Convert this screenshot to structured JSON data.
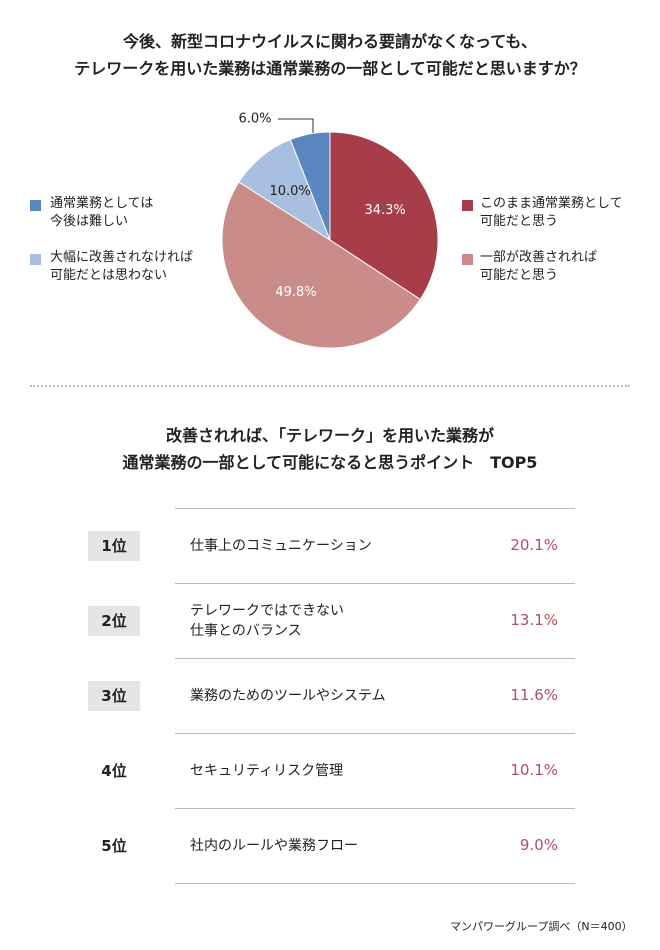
{
  "chart_data": {
    "type": "pie",
    "title": "今後、新型コロナウイルスに関わる要請がなくなっても、\nテレワークを用いた業務は通常業務の一部として可能だと思いますか？",
    "categories": [
      "このまま通常業務として\n可能だと思う",
      "一部が改善されれば\n可能だと思う",
      "大幅に改善されなければ\n可能だとは思わない",
      "通常業務としては\n今後は難しい"
    ],
    "values": [
      34.3,
      49.8,
      10.0,
      6.0
    ],
    "value_labels": [
      "34.3%",
      "49.8%",
      "10.0%",
      "6.0%"
    ],
    "colors": [
      "#a83d4a",
      "#c98c89",
      "#a9bfdf",
      "#5b87c1"
    ]
  },
  "ranking": {
    "title": "改善されれば、「テレワーク」を用いた業務が\n通常業務の一部として可能になると思うポイント　TOP5",
    "rows": [
      [
        "1位",
        "仕事上のコミュニケーション",
        "20.1%"
      ],
      [
        "2位",
        "テレワークではできない\n仕事とのバランス",
        "13.1%"
      ],
      [
        "3位",
        "業務のためのツールやシステム",
        "11.6%"
      ],
      [
        "4位",
        "セキュリティリスク管理",
        "10.1%"
      ],
      [
        "5位",
        "社内のルールや業務フロー",
        "9.0%"
      ]
    ]
  },
  "footer": "マンパワーグループ調べ（N＝400）"
}
